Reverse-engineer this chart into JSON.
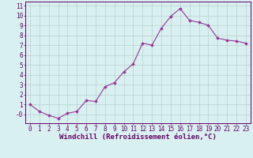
{
  "x": [
    0,
    1,
    2,
    3,
    4,
    5,
    6,
    7,
    8,
    9,
    10,
    11,
    12,
    13,
    14,
    15,
    16,
    17,
    18,
    19,
    20,
    21,
    22,
    23
  ],
  "y": [
    1.0,
    0.3,
    -0.1,
    -0.4,
    0.1,
    0.3,
    1.4,
    1.3,
    2.8,
    3.2,
    4.3,
    5.1,
    7.2,
    7.0,
    8.7,
    9.9,
    10.7,
    9.5,
    9.3,
    9.0,
    7.7,
    7.5,
    7.4,
    7.2
  ],
  "line_color": "#993399",
  "marker": "D",
  "markersize": 1.8,
  "linewidth": 0.8,
  "bg_color": "#d8f0f0",
  "grid_color": "#b8d0d0",
  "xlabel": "Windchill (Refroidissement éolien,°C)",
  "ylabel_ticks": [
    0,
    1,
    2,
    3,
    4,
    5,
    6,
    7,
    8,
    9,
    10,
    11
  ],
  "ytick_labels": [
    "-0",
    "1",
    "2",
    "3",
    "4",
    "5",
    "6",
    "7",
    "8",
    "9",
    "10",
    "11"
  ],
  "ylim": [
    -0.9,
    11.4
  ],
  "xlim": [
    -0.5,
    23.5
  ],
  "xticks": [
    0,
    1,
    2,
    3,
    4,
    5,
    6,
    7,
    8,
    9,
    10,
    11,
    12,
    13,
    14,
    15,
    16,
    17,
    18,
    19,
    20,
    21,
    22,
    23
  ],
  "axis_color": "#660066",
  "tick_label_size": 5.5,
  "xlabel_size": 6.5
}
